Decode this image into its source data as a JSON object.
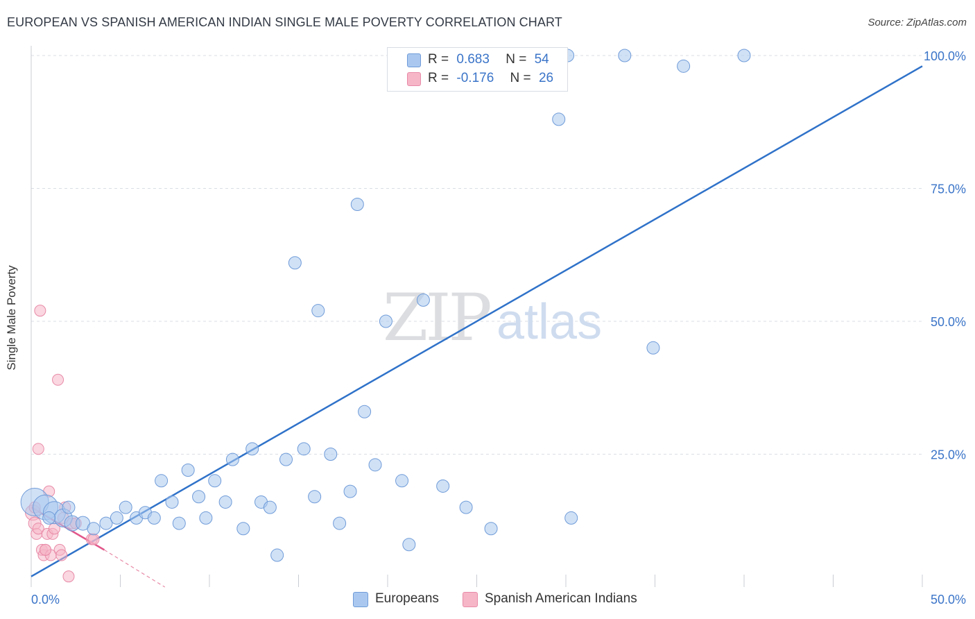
{
  "title": "EUROPEAN VS SPANISH AMERICAN INDIAN SINGLE MALE POVERTY CORRELATION CHART",
  "source": "Source: ZipAtlas.com",
  "watermark": {
    "zip": "ZIP",
    "atlas": "atlas"
  },
  "legend": {
    "europeans": {
      "r_label": "R =",
      "r_value": "0.683",
      "n_label": "N =",
      "n_value": "54"
    },
    "spanish": {
      "r_label": "R =",
      "r_value": "-0.176",
      "n_label": "N =",
      "n_value": "26"
    }
  },
  "bottom_legend": {
    "europeans": "Europeans",
    "spanish": "Spanish American Indians"
  },
  "colors": {
    "blue_fill": "#aac8ef",
    "blue_stroke": "#6f9bd8",
    "blue_line": "#2f72c9",
    "pink_fill": "#f6b6c8",
    "pink_stroke": "#e88aa7",
    "pink_line": "#e2578a",
    "grid": "#d9dde3",
    "tick_label": "#3a74c8"
  },
  "chart_data": {
    "type": "scatter",
    "title": "EUROPEAN VS SPANISH AMERICAN INDIAN SINGLE MALE POVERTY CORRELATION CHART",
    "xlabel": "",
    "ylabel": "Single Male Poverty",
    "xlim": [
      0,
      50
    ],
    "ylim": [
      0,
      100
    ],
    "x_tick_labels": [
      "0.0%",
      "50.0%"
    ],
    "y_ticks": [
      25,
      50,
      75,
      100
    ],
    "y_tick_labels": [
      "25.0%",
      "50.0%",
      "75.0%",
      "100.0%"
    ],
    "series": [
      {
        "name": "Europeans",
        "r": 0.683,
        "n": 54,
        "trend": {
          "x": [
            0,
            50
          ],
          "y": [
            2,
            98
          ]
        },
        "points": [
          {
            "x": 0.2,
            "y": 16,
            "size": 20
          },
          {
            "x": 0.8,
            "y": 15,
            "size": 18
          },
          {
            "x": 1.3,
            "y": 14,
            "size": 16
          },
          {
            "x": 1.8,
            "y": 13,
            "size": 13
          },
          {
            "x": 2.3,
            "y": 12,
            "size": 11
          },
          {
            "x": 2.9,
            "y": 12,
            "size": 10
          },
          {
            "x": 3.5,
            "y": 11,
            "size": 9
          },
          {
            "x": 4.2,
            "y": 12,
            "size": 9
          },
          {
            "x": 4.8,
            "y": 13,
            "size": 9
          },
          {
            "x": 5.3,
            "y": 15,
            "size": 9
          },
          {
            "x": 5.9,
            "y": 13,
            "size": 9
          },
          {
            "x": 6.4,
            "y": 14,
            "size": 9
          },
          {
            "x": 6.9,
            "y": 13,
            "size": 9
          },
          {
            "x": 7.3,
            "y": 20,
            "size": 9
          },
          {
            "x": 7.9,
            "y": 16,
            "size": 9
          },
          {
            "x": 8.3,
            "y": 12,
            "size": 9
          },
          {
            "x": 8.8,
            "y": 22,
            "size": 9
          },
          {
            "x": 9.4,
            "y": 17,
            "size": 9
          },
          {
            "x": 9.8,
            "y": 13,
            "size": 9
          },
          {
            "x": 10.3,
            "y": 20,
            "size": 9
          },
          {
            "x": 10.9,
            "y": 16,
            "size": 9
          },
          {
            "x": 11.3,
            "y": 24,
            "size": 9
          },
          {
            "x": 11.9,
            "y": 11,
            "size": 9
          },
          {
            "x": 12.4,
            "y": 26,
            "size": 9
          },
          {
            "x": 12.9,
            "y": 16,
            "size": 9
          },
          {
            "x": 13.4,
            "y": 15,
            "size": 9
          },
          {
            "x": 13.8,
            "y": 6,
            "size": 9
          },
          {
            "x": 14.3,
            "y": 24,
            "size": 9
          },
          {
            "x": 14.8,
            "y": 61,
            "size": 9
          },
          {
            "x": 15.3,
            "y": 26,
            "size": 9
          },
          {
            "x": 15.9,
            "y": 17,
            "size": 9
          },
          {
            "x": 16.1,
            "y": 52,
            "size": 9
          },
          {
            "x": 16.8,
            "y": 25,
            "size": 9
          },
          {
            "x": 17.3,
            "y": 12,
            "size": 9
          },
          {
            "x": 17.9,
            "y": 18,
            "size": 9
          },
          {
            "x": 18.3,
            "y": 72,
            "size": 9
          },
          {
            "x": 18.7,
            "y": 33,
            "size": 9
          },
          {
            "x": 19.3,
            "y": 23,
            "size": 9
          },
          {
            "x": 19.9,
            "y": 50,
            "size": 9
          },
          {
            "x": 20.8,
            "y": 20,
            "size": 9
          },
          {
            "x": 21.2,
            "y": 8,
            "size": 9
          },
          {
            "x": 22.0,
            "y": 54,
            "size": 9
          },
          {
            "x": 23.1,
            "y": 19,
            "size": 9
          },
          {
            "x": 24.4,
            "y": 15,
            "size": 9
          },
          {
            "x": 25.8,
            "y": 11,
            "size": 9
          },
          {
            "x": 29.6,
            "y": 88,
            "size": 9
          },
          {
            "x": 30.3,
            "y": 13,
            "size": 9
          },
          {
            "x": 30.1,
            "y": 100,
            "size": 9
          },
          {
            "x": 33.3,
            "y": 100,
            "size": 9
          },
          {
            "x": 34.9,
            "y": 45,
            "size": 9
          },
          {
            "x": 36.6,
            "y": 98,
            "size": 9
          },
          {
            "x": 40.0,
            "y": 100,
            "size": 9
          },
          {
            "x": 2.1,
            "y": 15,
            "size": 9
          },
          {
            "x": 1.0,
            "y": 13,
            "size": 9
          }
        ]
      },
      {
        "name": "Spanish American Indians",
        "r": -0.176,
        "n": 26,
        "trend": {
          "x": [
            0,
            4.1,
            7.5
          ],
          "y": [
            15,
            7,
            0
          ]
        },
        "trend_solid_until_x": 4.1,
        "points": [
          {
            "x": 0.1,
            "y": 14,
            "size": 11
          },
          {
            "x": 0.2,
            "y": 12,
            "size": 9
          },
          {
            "x": 0.3,
            "y": 10,
            "size": 8
          },
          {
            "x": 0.4,
            "y": 11,
            "size": 8
          },
          {
            "x": 0.4,
            "y": 26,
            "size": 8
          },
          {
            "x": 0.5,
            "y": 52,
            "size": 8
          },
          {
            "x": 0.6,
            "y": 7,
            "size": 8
          },
          {
            "x": 0.7,
            "y": 6,
            "size": 8
          },
          {
            "x": 0.8,
            "y": 7,
            "size": 8
          },
          {
            "x": 0.9,
            "y": 10,
            "size": 8
          },
          {
            "x": 1.0,
            "y": 18,
            "size": 8
          },
          {
            "x": 1.1,
            "y": 6,
            "size": 8
          },
          {
            "x": 1.2,
            "y": 10,
            "size": 8
          },
          {
            "x": 1.3,
            "y": 11,
            "size": 8
          },
          {
            "x": 1.5,
            "y": 39,
            "size": 8
          },
          {
            "x": 1.6,
            "y": 7,
            "size": 8
          },
          {
            "x": 1.7,
            "y": 6,
            "size": 8
          },
          {
            "x": 1.8,
            "y": 13,
            "size": 8
          },
          {
            "x": 1.9,
            "y": 15,
            "size": 8
          },
          {
            "x": 2.1,
            "y": 2,
            "size": 8
          },
          {
            "x": 2.3,
            "y": 12,
            "size": 8
          },
          {
            "x": 2.5,
            "y": 12,
            "size": 8
          },
          {
            "x": 3.4,
            "y": 9,
            "size": 8
          },
          {
            "x": 3.5,
            "y": 9,
            "size": 8
          },
          {
            "x": 0.2,
            "y": 15,
            "size": 8
          },
          {
            "x": 0.8,
            "y": 7,
            "size": 8
          }
        ]
      }
    ]
  }
}
